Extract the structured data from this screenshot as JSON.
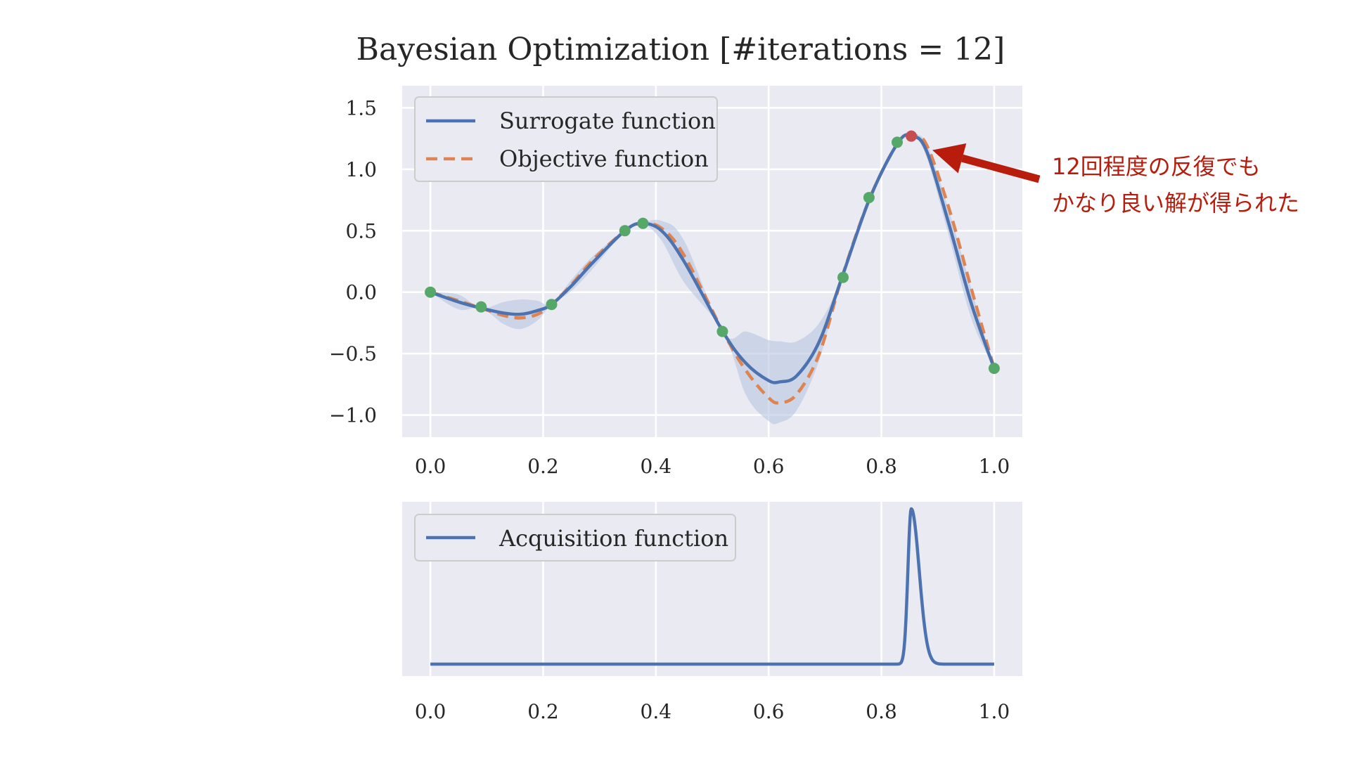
{
  "chart_data": [
    {
      "type": "line",
      "title": "Bayesian Optimization [#iterations = 12]",
      "xlabel": "",
      "ylabel": "",
      "xlim": [
        -0.05,
        1.05
      ],
      "ylim": [
        -1.18,
        1.68
      ],
      "xticks": [
        "0.0",
        "0.2",
        "0.4",
        "0.6",
        "0.8",
        "1.0"
      ],
      "xtick_values": [
        0.0,
        0.2,
        0.4,
        0.6,
        0.8,
        1.0
      ],
      "yticks": [
        "1.5",
        "1.0",
        "0.5",
        "0.0",
        "−0.5",
        "−1.0"
      ],
      "ytick_values": [
        1.5,
        1.0,
        0.5,
        0.0,
        -0.5,
        -1.0
      ],
      "grid": true,
      "legend_position": "top-left",
      "colors": {
        "surrogate": "#4c72b0",
        "objective": "#dd8452",
        "band": "#b3c1de",
        "sample": "#55a868",
        "best": "#c44e52",
        "annotation": "#b71c0c"
      },
      "series": [
        {
          "name": "Surrogate function",
          "style": "solid",
          "x": [
            0.0,
            0.05,
            0.09,
            0.13,
            0.16,
            0.19,
            0.215,
            0.25,
            0.29,
            0.345,
            0.375,
            0.41,
            0.45,
            0.52,
            0.56,
            0.6,
            0.62,
            0.65,
            0.69,
            0.73,
            0.78,
            0.83,
            0.855,
            0.88,
            0.92,
            0.96,
            1.0
          ],
          "y": [
            0.0,
            -0.08,
            -0.13,
            -0.17,
            -0.18,
            -0.15,
            -0.1,
            0.05,
            0.25,
            0.5,
            0.56,
            0.5,
            0.25,
            -0.33,
            -0.58,
            -0.72,
            -0.73,
            -0.68,
            -0.4,
            0.12,
            0.77,
            1.22,
            1.27,
            1.15,
            0.55,
            -0.1,
            -0.62
          ]
        },
        {
          "name": "Objective function",
          "style": "dashed",
          "x": [
            0.0,
            0.05,
            0.09,
            0.13,
            0.16,
            0.19,
            0.215,
            0.25,
            0.29,
            0.345,
            0.375,
            0.41,
            0.45,
            0.52,
            0.56,
            0.6,
            0.62,
            0.65,
            0.69,
            0.73,
            0.78,
            0.83,
            0.855,
            0.88,
            0.92,
            0.96,
            1.0
          ],
          "y": [
            0.0,
            -0.07,
            -0.13,
            -0.19,
            -0.21,
            -0.18,
            -0.1,
            0.06,
            0.27,
            0.5,
            0.56,
            0.52,
            0.3,
            -0.33,
            -0.64,
            -0.86,
            -0.9,
            -0.83,
            -0.5,
            0.12,
            0.77,
            1.22,
            1.27,
            1.2,
            0.68,
            0.02,
            -0.62
          ]
        }
      ],
      "confidence_band": {
        "x": [
          0.0,
          0.05,
          0.09,
          0.13,
          0.16,
          0.19,
          0.215,
          0.25,
          0.29,
          0.345,
          0.375,
          0.41,
          0.45,
          0.52,
          0.56,
          0.6,
          0.62,
          0.65,
          0.69,
          0.73,
          0.78,
          0.83,
          0.855,
          0.88,
          0.92,
          0.96,
          1.0
        ],
        "lower": [
          0.0,
          -0.14,
          -0.13,
          -0.26,
          -0.3,
          -0.23,
          -0.1,
          0.01,
          0.2,
          0.5,
          0.56,
          0.42,
          0.08,
          -0.33,
          -0.84,
          -1.05,
          -1.06,
          -0.96,
          -0.55,
          0.12,
          0.77,
          1.22,
          1.27,
          1.1,
          0.45,
          -0.22,
          -0.62
        ],
        "upper": [
          0.0,
          -0.02,
          -0.13,
          -0.08,
          -0.06,
          -0.07,
          -0.1,
          0.1,
          0.3,
          0.5,
          0.56,
          0.58,
          0.42,
          -0.33,
          -0.32,
          -0.39,
          -0.4,
          -0.4,
          -0.25,
          0.12,
          0.77,
          1.22,
          1.27,
          1.21,
          0.66,
          0.02,
          -0.62
        ]
      },
      "samples": {
        "x": [
          0.0,
          0.09,
          0.215,
          0.345,
          0.377,
          0.518,
          0.732,
          0.778,
          0.828,
          1.0
        ],
        "y": [
          0.0,
          -0.12,
          -0.1,
          0.5,
          0.56,
          -0.32,
          0.12,
          0.77,
          1.22,
          -0.62
        ]
      },
      "best_point": {
        "x": 0.853,
        "y": 1.27
      },
      "annotation": {
        "lines": [
          "12回程度の反復でも",
          "かなり良い解が得られた"
        ]
      }
    },
    {
      "type": "line",
      "title": "",
      "xlim": [
        -0.05,
        1.05
      ],
      "xticks": [
        "0.0",
        "0.2",
        "0.4",
        "0.6",
        "0.8",
        "1.0"
      ],
      "xtick_values": [
        0.0,
        0.2,
        0.4,
        0.6,
        0.8,
        1.0
      ],
      "grid": true,
      "legend_position": "top-left",
      "series": [
        {
          "name": "Acquisition function",
          "style": "solid",
          "peak_x": 0.853,
          "peak_height": 1.0,
          "rise_width": 0.006,
          "decay_width": 0.014
        }
      ]
    }
  ]
}
